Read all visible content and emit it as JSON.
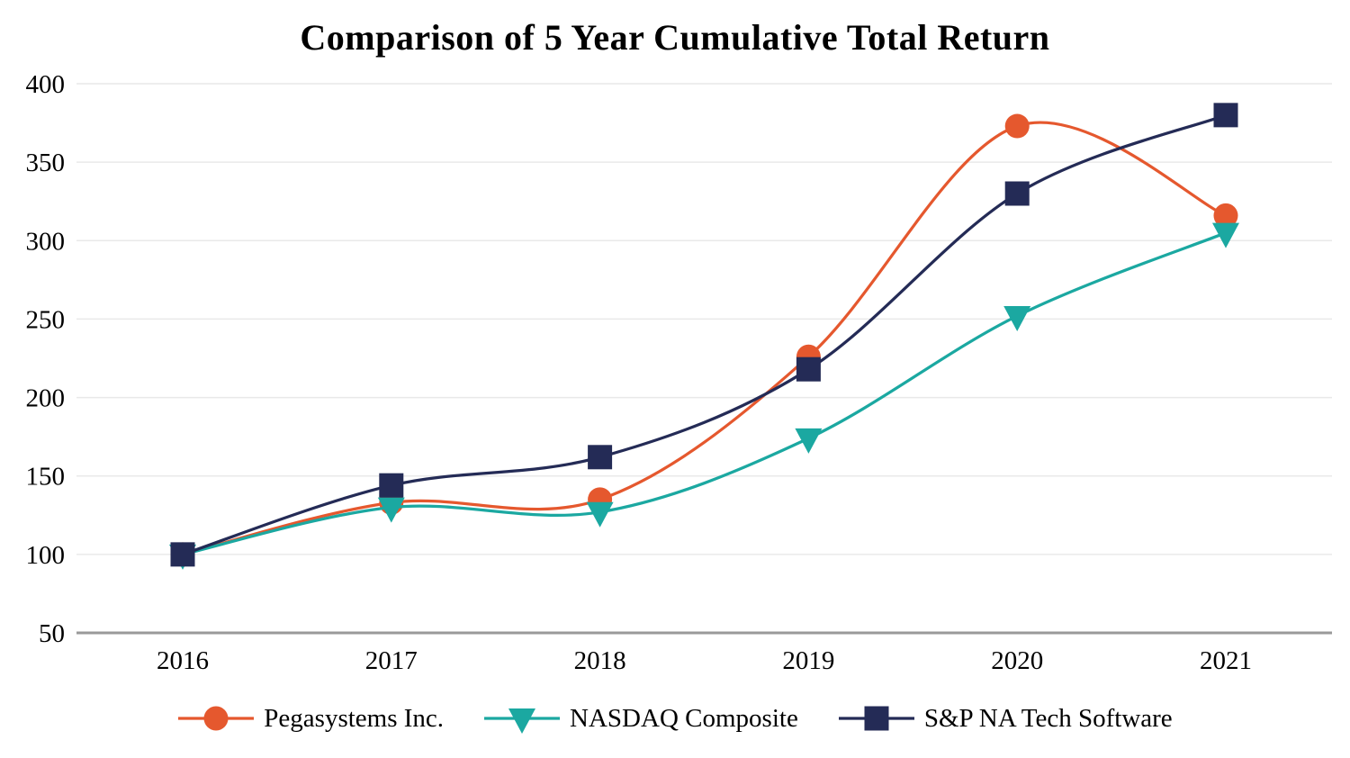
{
  "chart_data": {
    "type": "line",
    "title": "Comparison of 5 Year Cumulative Total Return",
    "line_style": "smooth",
    "grid": "horizontal",
    "legend_position": "bottom",
    "categories": [
      "2016",
      "2017",
      "2018",
      "2019",
      "2020",
      "2021"
    ],
    "series": [
      {
        "name": "Pegasystems Inc.",
        "marker": "circle",
        "color": "#E5582E",
        "values": [
          100,
          133,
          135,
          226,
          373,
          316
        ]
      },
      {
        "name": "NASDAQ Composite",
        "marker": "triangle-down",
        "color": "#1BA8A1",
        "values": [
          100,
          130,
          127,
          174,
          252,
          305
        ]
      },
      {
        "name": "S&P NA Tech Software",
        "marker": "square",
        "color": "#242B56",
        "values": [
          100,
          144,
          162,
          218,
          330,
          380
        ]
      }
    ],
    "ylim": [
      50,
      400
    ],
    "yticks": [
      50,
      100,
      150,
      200,
      250,
      300,
      350,
      400
    ],
    "xlabel": "",
    "ylabel": ""
  },
  "colors": {
    "background": "#FFFFFF",
    "gridline": "#E9E9E9",
    "axis_line": "#999999",
    "text": "#000000"
  }
}
